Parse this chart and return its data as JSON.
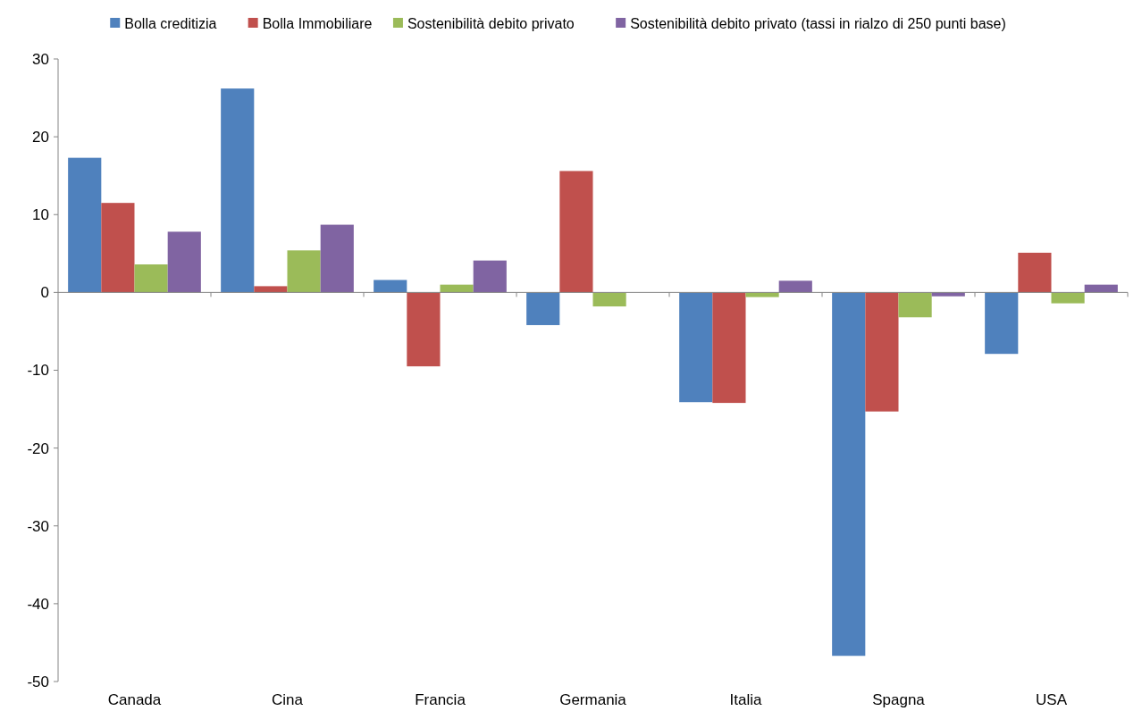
{
  "chart_data": {
    "type": "bar",
    "categories": [
      "Canada",
      "Cina",
      "Francia",
      "Germania",
      "Italia",
      "Spagna",
      "USA"
    ],
    "series": [
      {
        "name": "Bolla creditizia",
        "color": "#4f81bd",
        "values": [
          17.3,
          26.2,
          1.6,
          -4.2,
          -14.1,
          -46.7,
          -7.9
        ]
      },
      {
        "name": "Bolla Immobiliare",
        "color": "#c0504d",
        "values": [
          11.5,
          0.8,
          -9.5,
          15.6,
          -14.2,
          -15.3,
          5.1
        ]
      },
      {
        "name": "Sostenibilità debito privato",
        "color": "#9bbb59",
        "values": [
          3.6,
          5.4,
          1.0,
          -1.8,
          -0.6,
          -3.2,
          -1.4
        ]
      },
      {
        "name": "Sostenibilità debito privato (tassi in rialzo di 250 punti base)",
        "color": "#8064a2",
        "values": [
          7.8,
          8.7,
          4.1,
          null,
          1.5,
          -0.5,
          1.0
        ]
      }
    ],
    "ylim": [
      -50,
      30
    ],
    "yticks": [
      -50,
      -40,
      -30,
      -20,
      -10,
      0,
      10,
      20,
      30
    ],
    "legend": "top"
  }
}
